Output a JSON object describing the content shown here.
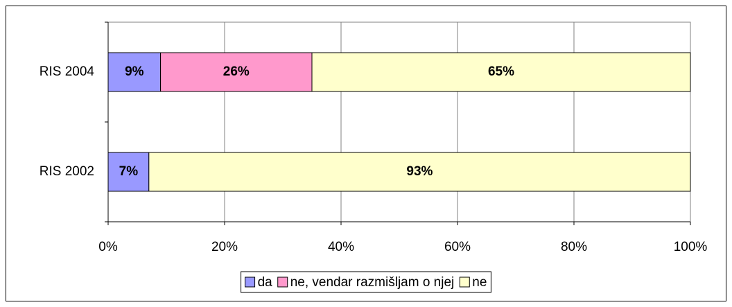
{
  "chart_data": {
    "type": "stacked-bar-horizontal",
    "categories": [
      "RIS 2004",
      "RIS 2002"
    ],
    "series": [
      {
        "name": "da",
        "color": "#9999ff",
        "values": [
          9,
          7
        ],
        "value_labels": [
          "9%",
          "7%"
        ]
      },
      {
        "name": "ne, vendar razmišljam o njej",
        "color": "#ff99cc",
        "values": [
          26,
          null
        ],
        "value_labels": [
          "26%",
          null
        ]
      },
      {
        "name": "ne",
        "color": "#ffffcc",
        "values": [
          65,
          93
        ],
        "value_labels": [
          "65%",
          "93%"
        ]
      }
    ],
    "xlim": [
      0,
      100
    ],
    "xticks": [
      {
        "value": 0,
        "label": "0%"
      },
      {
        "value": 20,
        "label": "20%"
      },
      {
        "value": 40,
        "label": "40%"
      },
      {
        "value": 60,
        "label": "60%"
      },
      {
        "value": 80,
        "label": "80%"
      },
      {
        "value": 100,
        "label": "100%"
      }
    ],
    "grid": true,
    "legend": "bottom"
  }
}
